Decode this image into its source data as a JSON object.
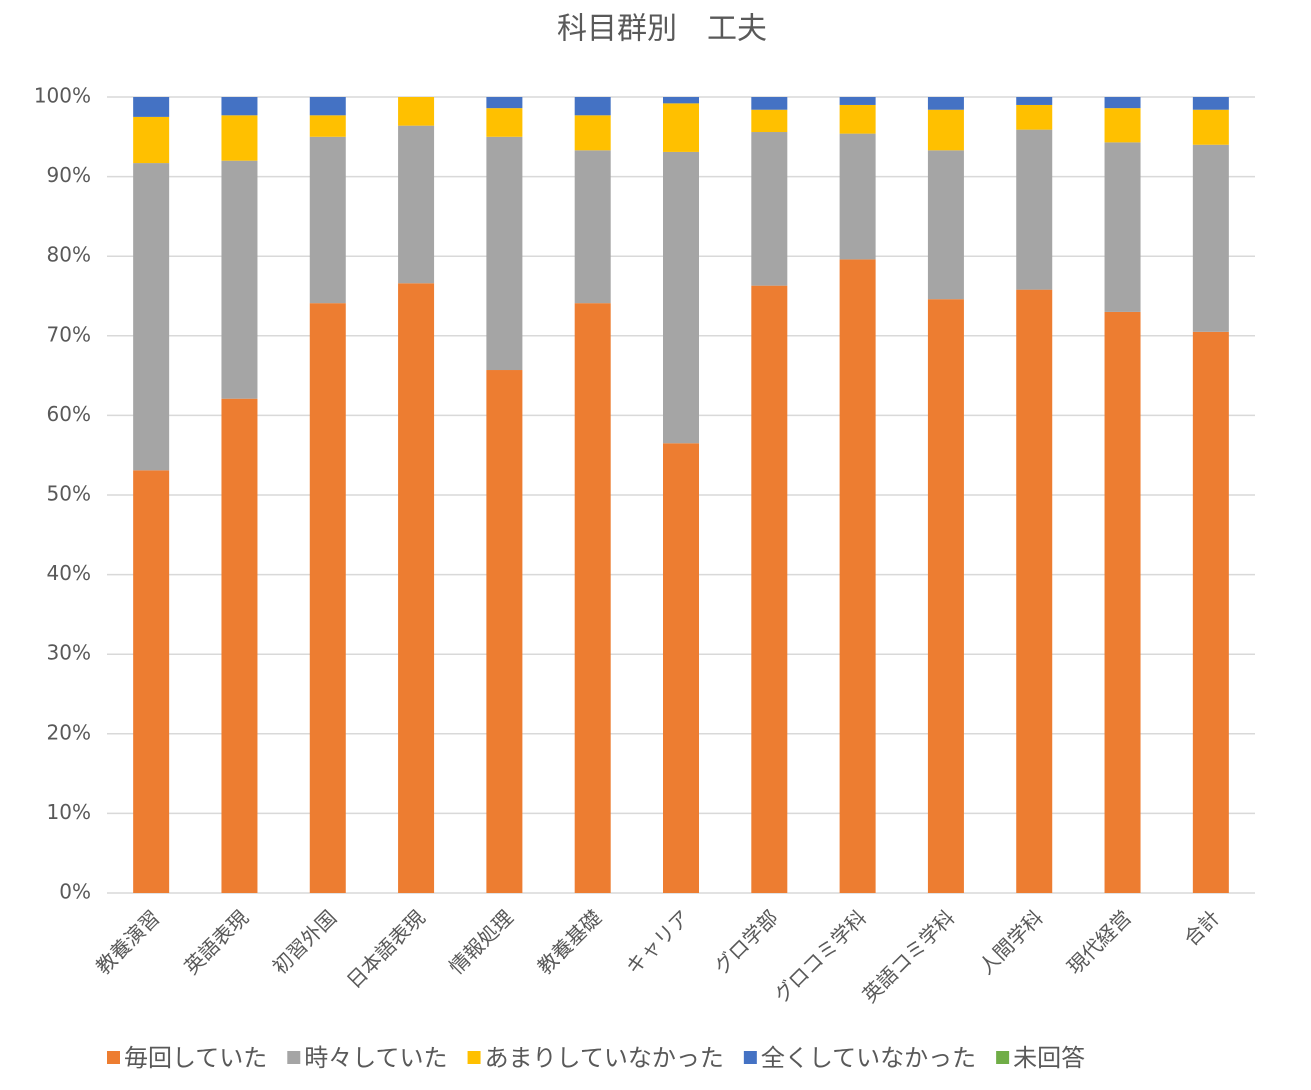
{
  "chart_data": {
    "type": "stacked_bar",
    "title": "科目群別　工夫",
    "categories": [
      "教養演習",
      "英語表現",
      "初習外国",
      "日本語表現",
      "情報処理",
      "教養基礎",
      "キャリア",
      "グロ学部",
      "グロコミ学科",
      "英語コミ学科",
      "人間学科",
      "現代経営",
      "合計"
    ],
    "series": [
      {
        "name": "毎回していた",
        "color": "#ed7d31",
        "values": [
          53.1,
          62.1,
          74.1,
          76.6,
          65.7,
          74.1,
          56.5,
          76.3,
          79.6,
          74.6,
          75.8,
          73.0,
          70.5
        ]
      },
      {
        "name": "時々していた",
        "color": "#a5a5a5",
        "values": [
          38.6,
          29.9,
          20.9,
          19.8,
          29.3,
          19.2,
          36.6,
          19.3,
          15.8,
          18.7,
          20.1,
          21.3,
          23.5
        ]
      },
      {
        "name": "あまりしていなかった",
        "color": "#ffc000",
        "values": [
          5.8,
          5.7,
          2.7,
          3.6,
          3.6,
          4.4,
          6.1,
          2.8,
          3.6,
          5.1,
          3.1,
          4.3,
          4.4
        ]
      },
      {
        "name": "全くしていなかった",
        "color": "#4472c4",
        "values": [
          2.5,
          2.3,
          2.3,
          0,
          1.4,
          2.3,
          0.8,
          1.6,
          1.0,
          1.6,
          1.0,
          1.4,
          1.6
        ]
      },
      {
        "name": "未回答",
        "color": "#70ad47",
        "values": [
          0,
          0,
          0,
          0,
          0,
          0,
          0,
          0,
          0,
          0,
          0,
          0,
          0
        ]
      }
    ],
    "ylim": [
      0,
      100
    ],
    "yticks": [
      {
        "value": 0,
        "label": "0%"
      },
      {
        "value": 10,
        "label": "10%"
      },
      {
        "value": 20,
        "label": "20%"
      },
      {
        "value": 30,
        "label": "30%"
      },
      {
        "value": 40,
        "label": "40%"
      },
      {
        "value": 50,
        "label": "50%"
      },
      {
        "value": 60,
        "label": "60%"
      },
      {
        "value": 70,
        "label": "70%"
      },
      {
        "value": 80,
        "label": "80%"
      },
      {
        "value": 90,
        "label": "90%"
      },
      {
        "value": 100,
        "label": "100%"
      }
    ],
    "grid": true,
    "legend": "bottom"
  }
}
